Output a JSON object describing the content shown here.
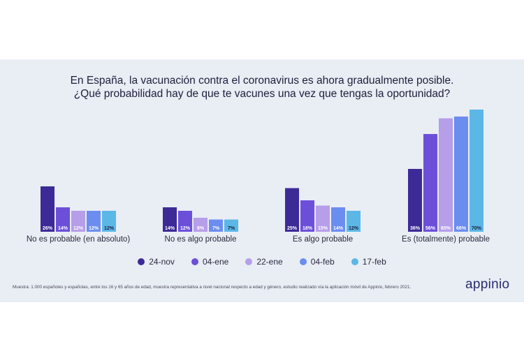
{
  "title_line1": "En España, la vacunación contra el coronavirus es ahora gradualmente posible.",
  "title_line2": "¿Qué probabilidad hay de que te vacunes una vez que tengas la oportunidad?",
  "footnote": "Muestra: 1.000 españoles y españolas, entre los 16 y 65 años de edad, muestra representativa a nivel nacional respecto a edad y género, estudio realizado vía la aplicación móvil de Appinio, febrero 2021.",
  "logo": "appinio",
  "colors": {
    "panel_bg": "#e9edf4",
    "series": [
      "#3c2a97",
      "#6c4fd9",
      "#b69ee9",
      "#6b8df0",
      "#5bb7e6"
    ]
  },
  "chart_data": {
    "type": "bar",
    "categories": [
      "No es probable (en absoluto)",
      "No es algo probable",
      "Es algo probable",
      "Es (totalmente) probable"
    ],
    "series": [
      {
        "name": "24-nov",
        "values": [
          26,
          14,
          25,
          36
        ],
        "labels": [
          "26%",
          "14%",
          "25%",
          "36%"
        ]
      },
      {
        "name": "04-ene",
        "values": [
          14,
          12,
          18,
          56
        ],
        "labels": [
          "14%",
          "12%",
          "18%",
          "56%"
        ]
      },
      {
        "name": "22-ene",
        "values": [
          12,
          8,
          15,
          65
        ],
        "labels": [
          "12%",
          "8%",
          "15%",
          "65%"
        ]
      },
      {
        "name": "04-feb",
        "values": [
          12,
          7,
          14,
          66
        ],
        "labels": [
          "12%",
          "7%",
          "14%",
          "66%"
        ]
      },
      {
        "name": "17-feb",
        "values": [
          12,
          7,
          12,
          70
        ],
        "labels": [
          "12%",
          "7%",
          "12%",
          "70%"
        ]
      }
    ],
    "ylim": [
      0,
      70
    ],
    "legend_position": "bottom",
    "grid": false
  }
}
